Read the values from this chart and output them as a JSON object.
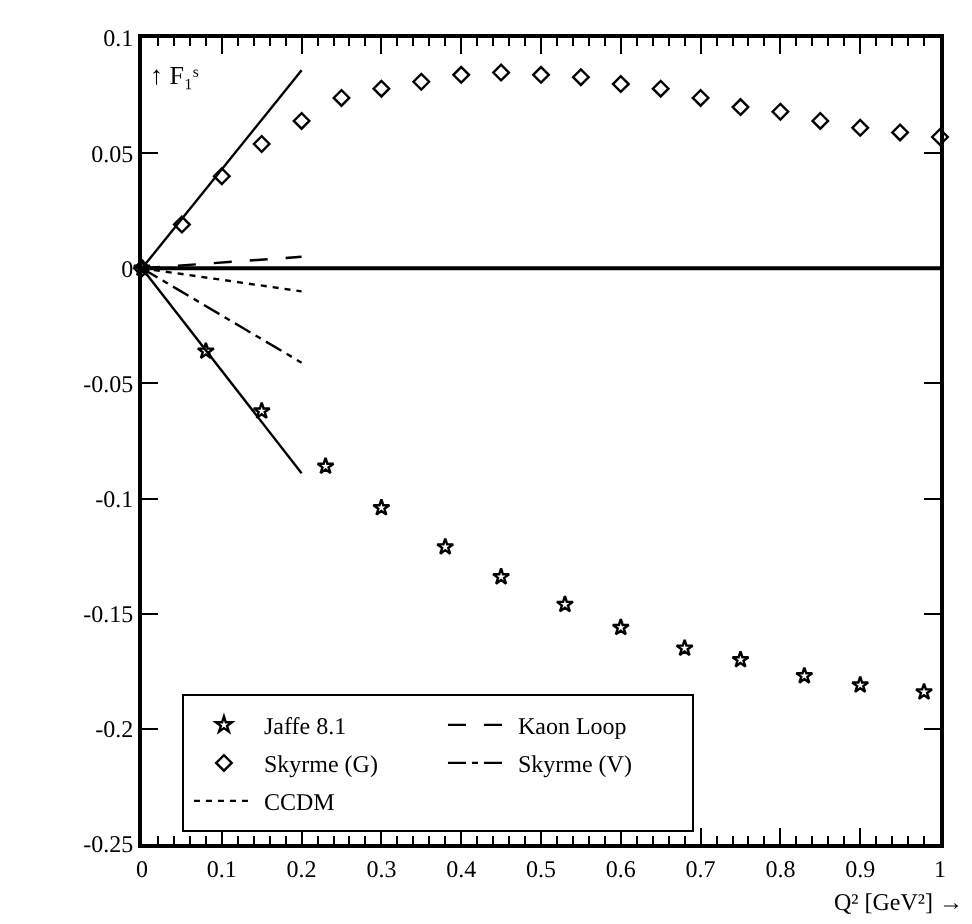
{
  "chart_data": {
    "type": "scatter",
    "xlabel": "Q² [GeV²] →",
    "ylabel": "↑ F₁ˢ",
    "xlim": [
      0,
      1
    ],
    "xticks": [
      0,
      0.1,
      0.2,
      0.3,
      0.4,
      0.5,
      0.6,
      0.7,
      0.8,
      0.9,
      1
    ],
    "ylim": [
      -0.25,
      0.1
    ],
    "yticks": [
      -0.25,
      -0.2,
      -0.15,
      -0.1,
      -0.05,
      0,
      0.05,
      0.1
    ],
    "legend": "bottom",
    "ref_lines": [
      {
        "axis": "y",
        "value": 0,
        "color": "#000000"
      }
    ],
    "series": [
      {
        "name": "Jaffe 8.1",
        "marker": "star",
        "color": "#000000",
        "x": [
          0,
          0.08,
          0.15,
          0.23,
          0.3,
          0.38,
          0.45,
          0.53,
          0.6,
          0.68,
          0.75,
          0.83,
          0.9,
          0.98
        ],
        "values": [
          0,
          -0.036,
          -0.062,
          -0.086,
          -0.104,
          -0.121,
          -0.134,
          -0.146,
          -0.156,
          -0.165,
          -0.17,
          -0.177,
          -0.181,
          -0.184
        ]
      },
      {
        "name": "Kaon Loop",
        "type": "line",
        "line_style": "dashed",
        "color": "#000000",
        "x": [
          0,
          0.2
        ],
        "values": [
          0,
          0.005
        ]
      },
      {
        "name": "Skyrme (G)",
        "marker": "diamond",
        "color": "#000000",
        "x": [
          0,
          0.05,
          0.1,
          0.15,
          0.2,
          0.25,
          0.3,
          0.35,
          0.4,
          0.45,
          0.5,
          0.55,
          0.6,
          0.65,
          0.7,
          0.75,
          0.8,
          0.85,
          0.9,
          0.95,
          1
        ],
        "values": [
          0,
          0.019,
          0.04,
          0.054,
          0.064,
          0.074,
          0.078,
          0.081,
          0.084,
          0.085,
          0.084,
          0.083,
          0.08,
          0.078,
          0.074,
          0.07,
          0.068,
          0.064,
          0.061,
          0.059,
          0.057
        ]
      },
      {
        "name": "Skyrme (V)",
        "type": "line",
        "line_style": "dashdot",
        "color": "#000000",
        "x": [
          0,
          0.2
        ],
        "values": [
          0,
          -0.041
        ]
      },
      {
        "name": "CCDM",
        "type": "line",
        "line_style": "dotted",
        "color": "#000000",
        "x": [
          0,
          0.2
        ],
        "values": [
          0,
          -0.01
        ]
      },
      {
        "type": "line",
        "line_style": "solid",
        "color": "#000000",
        "x": [
          0,
          0.2
        ],
        "values": [
          0,
          0.086
        ]
      },
      {
        "type": "line",
        "line_style": "solid",
        "color": "#000000",
        "x": [
          0,
          0.2
        ],
        "values": [
          0,
          -0.089
        ]
      }
    ]
  }
}
